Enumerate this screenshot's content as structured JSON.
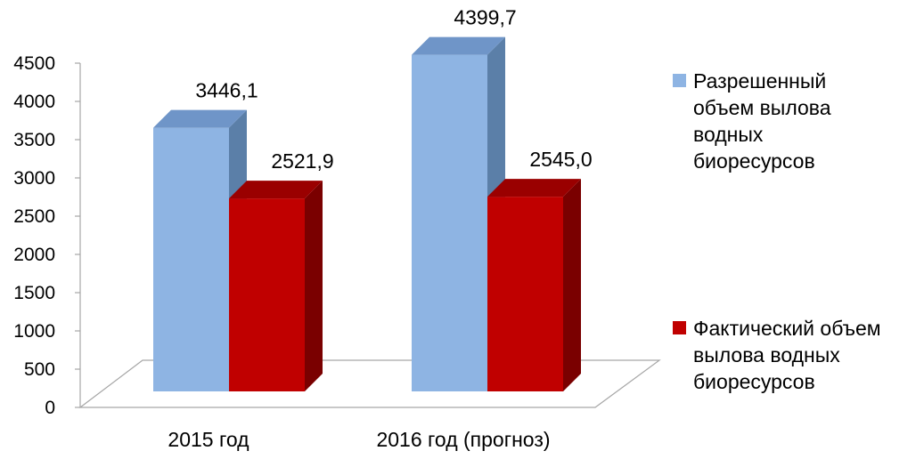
{
  "chart_data": {
    "type": "bar",
    "three_d": true,
    "categories": [
      "2015 год",
      "2016 год (прогноз)"
    ],
    "series": [
      {
        "name": "Разрешенный объем вылова водных биоресурсов",
        "values": [
          3446.1,
          4399.7
        ],
        "labels": [
          "3446,1",
          "4399,7"
        ],
        "color": "#8EB4E3",
        "side_color": "#5B7FA8",
        "top_color": "#6F95C8"
      },
      {
        "name": "Фактический объем вылова водных биоресурсов",
        "values": [
          2521.9,
          2545.0
        ],
        "labels": [
          "2521,9",
          "2545,0"
        ],
        "color": "#C00000",
        "side_color": "#7A0000",
        "top_color": "#9A0000"
      }
    ],
    "y_ticks": [
      "0",
      "500",
      "1000",
      "1500",
      "2000",
      "2500",
      "3000",
      "3500",
      "4000",
      "4500"
    ],
    "ylim": [
      0,
      4500
    ],
    "grid": false,
    "legend_position": "right"
  }
}
